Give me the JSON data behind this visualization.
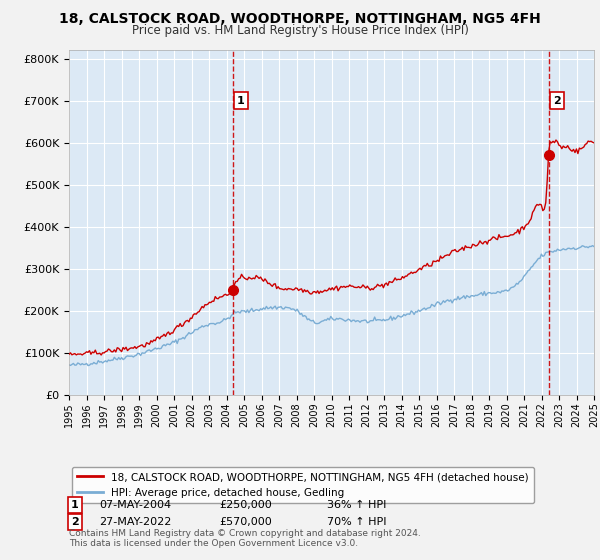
{
  "title_line1": "18, CALSTOCK ROAD, WOODTHORPE, NOTTINGHAM, NG5 4FH",
  "title_line2": "Price paid vs. HM Land Registry's House Price Index (HPI)",
  "bg_color": "#dce9f5",
  "fig_bg_color": "#f2f2f2",
  "red_line_color": "#cc0000",
  "blue_line_color": "#7aadd4",
  "grid_color": "#ffffff",
  "sale1_date": 2004.35,
  "sale1_price": 250000,
  "sale2_date": 2022.4,
  "sale2_price": 570000,
  "xmin": 1995,
  "xmax": 2025,
  "ymin": 0,
  "ymax": 820000,
  "ylabel_ticks": [
    0,
    100000,
    200000,
    300000,
    400000,
    500000,
    600000,
    700000,
    800000
  ],
  "ylabel_labels": [
    "£0",
    "£100K",
    "£200K",
    "£300K",
    "£400K",
    "£500K",
    "£600K",
    "£700K",
    "£800K"
  ],
  "legend_red_label": "18, CALSTOCK ROAD, WOODTHORPE, NOTTINGHAM, NG5 4FH (detached house)",
  "legend_blue_label": "HPI: Average price, detached house, Gedling",
  "annotation1_label": "1",
  "annotation1_date": "07-MAY-2004",
  "annotation1_price": "£250,000",
  "annotation1_pct": "36% ↑ HPI",
  "annotation2_label": "2",
  "annotation2_date": "27-MAY-2022",
  "annotation2_price": "£570,000",
  "annotation2_pct": "70% ↑ HPI",
  "footnote1": "Contains HM Land Registry data © Crown copyright and database right 2024.",
  "footnote2": "This data is licensed under the Open Government Licence v3.0."
}
